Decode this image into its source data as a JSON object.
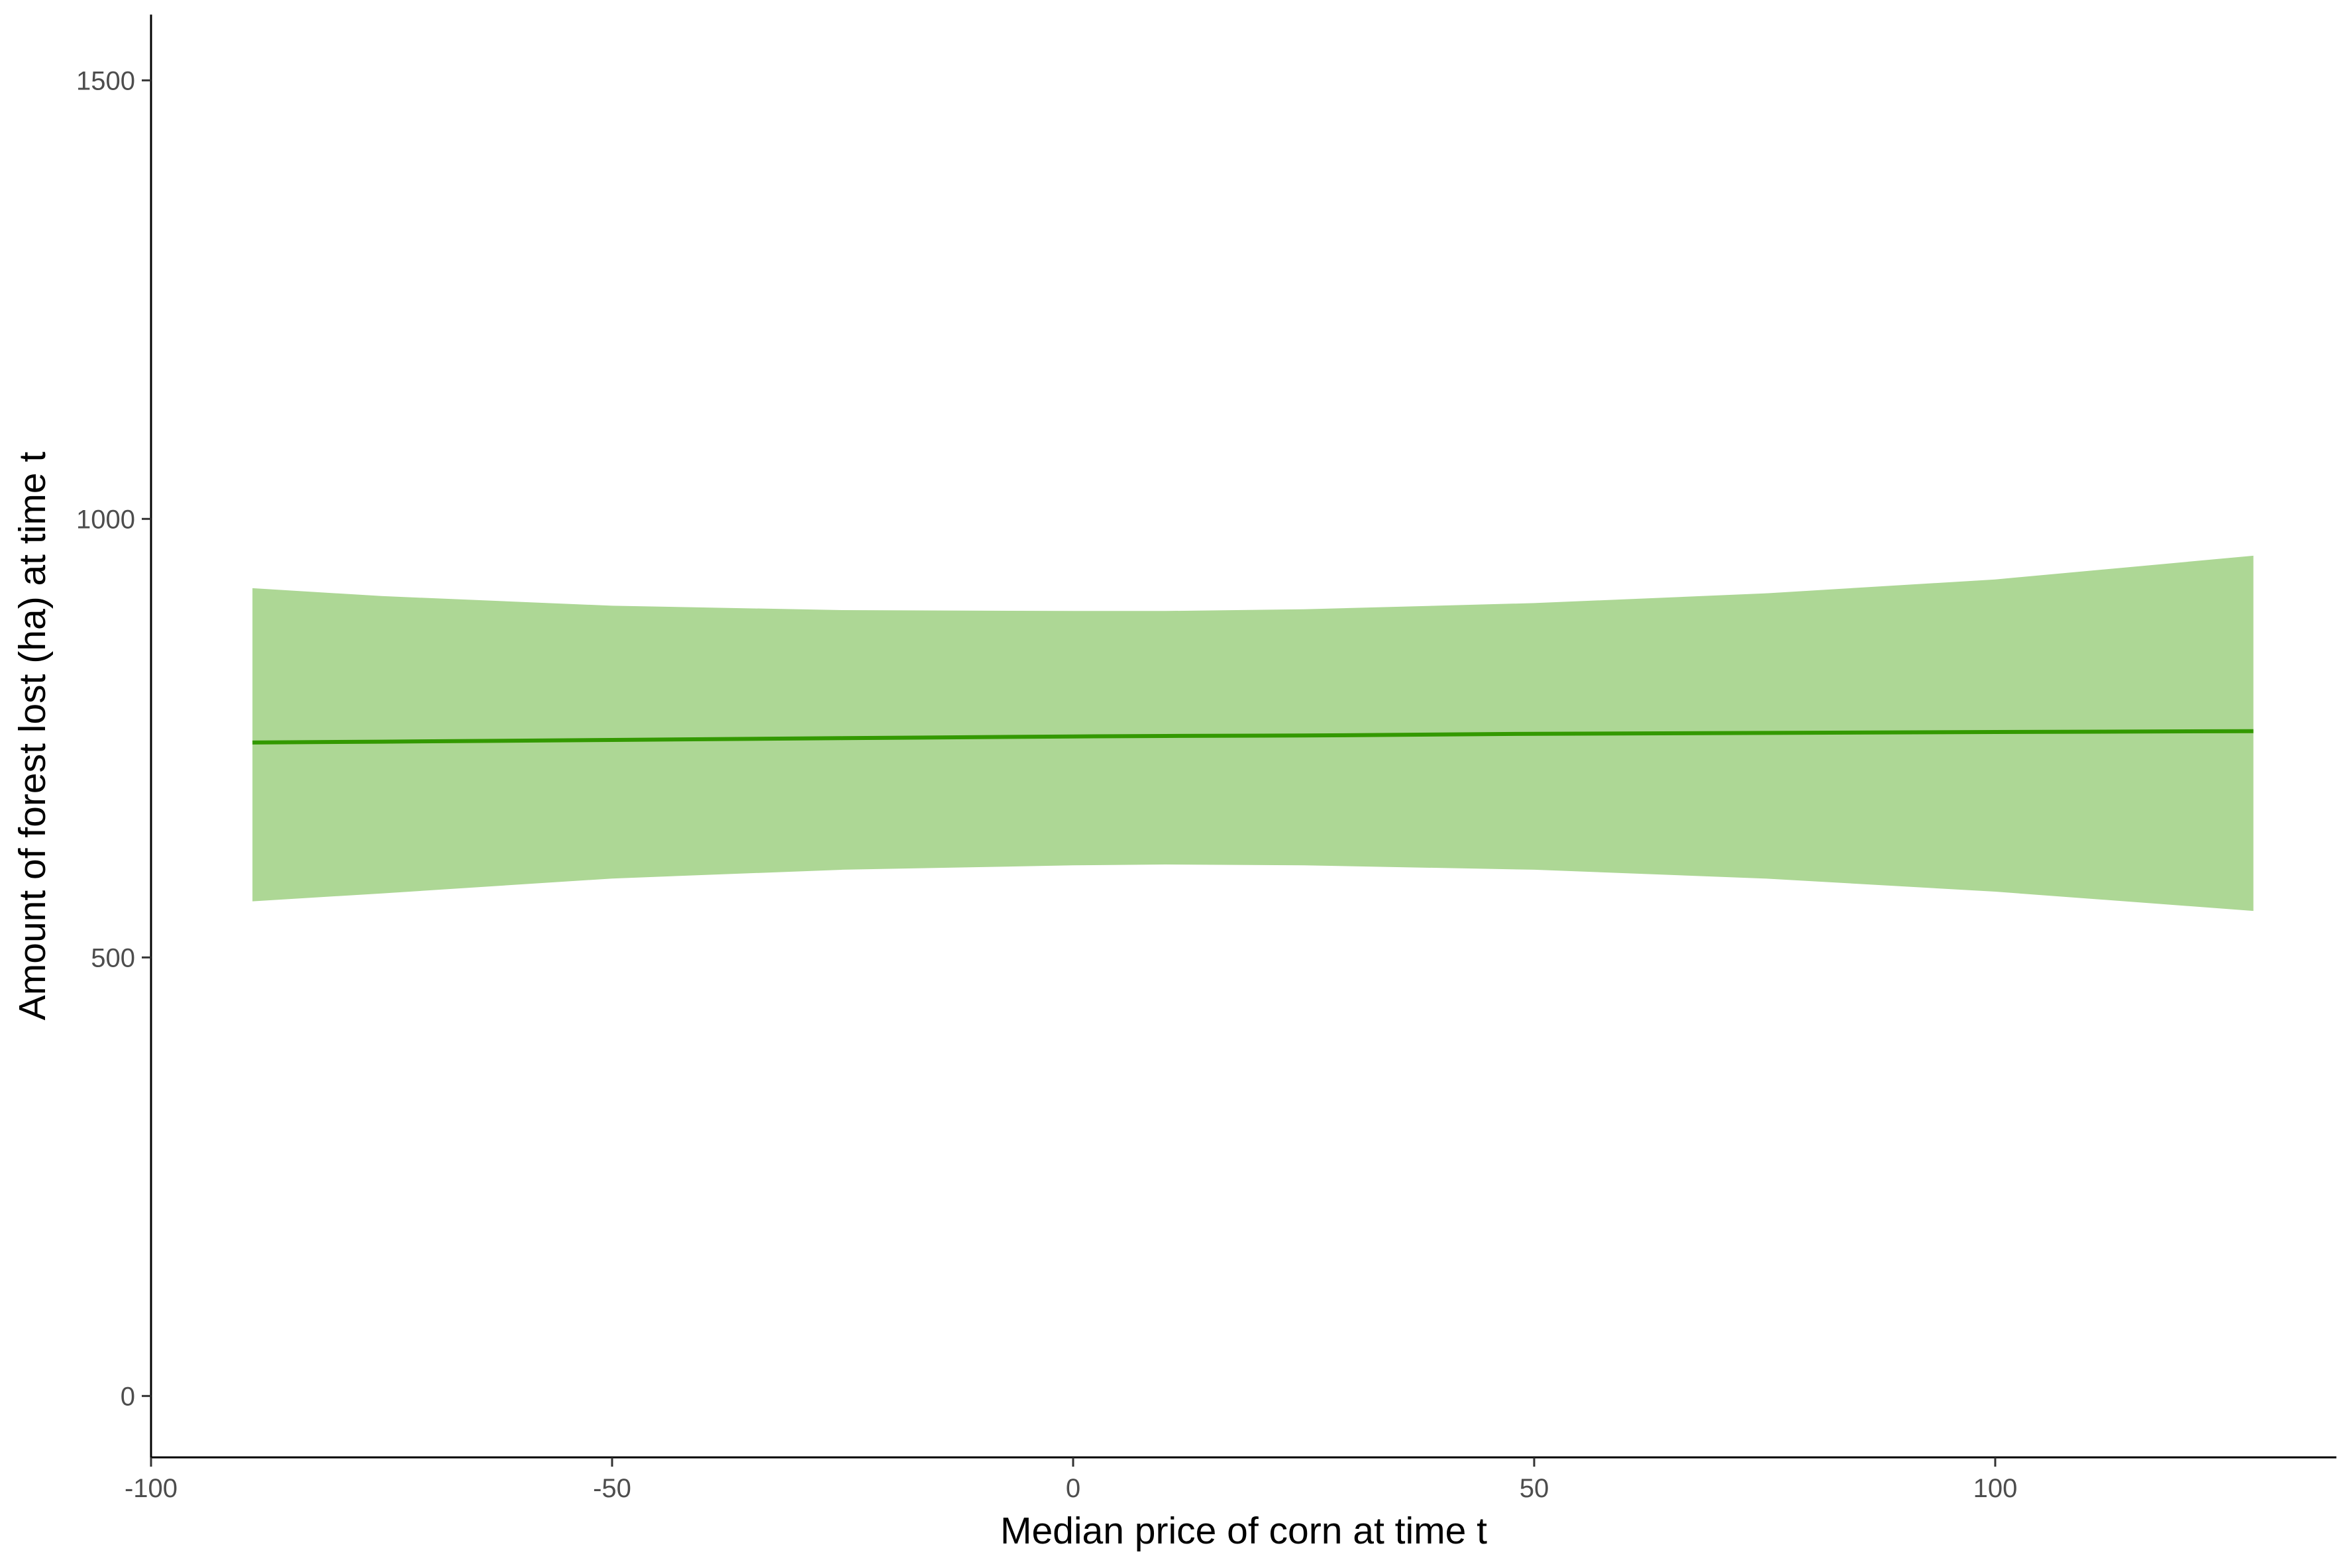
{
  "chart_data": {
    "type": "line",
    "title": "",
    "xlabel": "Median price of corn at time t",
    "ylabel": "Amount of forest lost (ha) at time t",
    "xlim": [
      -100,
      137
    ],
    "ylim": [
      -70,
      1575
    ],
    "x_ticks": [
      -100,
      -50,
      0,
      50,
      100
    ],
    "x_tick_labels": [
      "-100",
      "-50",
      "0",
      "50",
      "100"
    ],
    "y_ticks": [
      0,
      500,
      1000,
      1500
    ],
    "y_tick_labels": [
      "0",
      "500",
      "1000",
      "1500"
    ],
    "grid": false,
    "legend": "none",
    "colors": {
      "line": "#339900",
      "band": "#add795",
      "axis": "#000000",
      "tick_text": "#4d4d4d"
    },
    "series": [
      {
        "x": [
          -89,
          -75,
          -50,
          -25,
          0,
          10,
          25,
          50,
          75,
          100,
          128
        ],
        "y": [
          745,
          746,
          748,
          750,
          752,
          752.5,
          753,
          755,
          756,
          757,
          758
        ],
        "lower": [
          564,
          573,
          590,
          600,
          605,
          606,
          605,
          600,
          590,
          575,
          553
        ],
        "upper": [
          921,
          912,
          901,
          896,
          895,
          895,
          897,
          904,
          915,
          931,
          958
        ]
      }
    ]
  }
}
